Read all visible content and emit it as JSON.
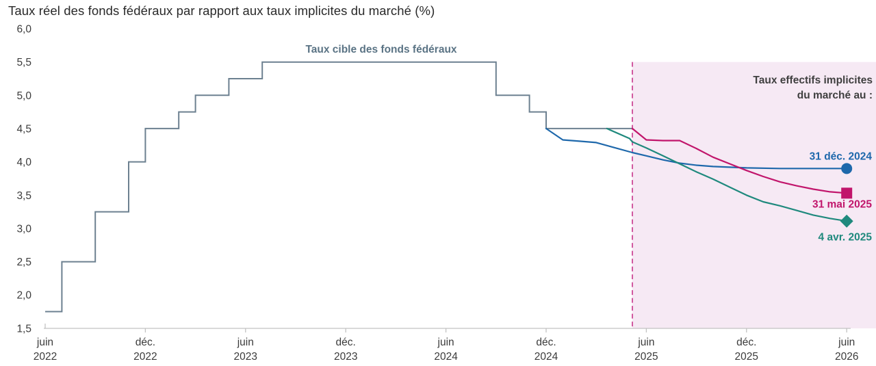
{
  "chart": {
    "title": "Taux réel des fonds fédéraux par rapport aux taux implicites du marché (%)"
  },
  "chart_data": {
    "type": "line",
    "title": "Taux réel des fonds fédéraux par rapport aux taux implicites du marché (%)",
    "ylim": [
      1.5,
      6.0
    ],
    "grid": false,
    "axis_color": "#c2c2c2",
    "y_ticks": [
      {
        "v": 6.0,
        "label": "6,0"
      },
      {
        "v": 5.5,
        "label": "5,5"
      },
      {
        "v": 5.0,
        "label": "5,0"
      },
      {
        "v": 4.5,
        "label": "4,5"
      },
      {
        "v": 4.0,
        "label": "4,0"
      },
      {
        "v": 3.5,
        "label": "3,5"
      },
      {
        "v": 3.0,
        "label": "3,0"
      },
      {
        "v": 2.5,
        "label": "2,5"
      },
      {
        "v": 2.0,
        "label": "2,0"
      },
      {
        "v": 1.5,
        "label": "1,5"
      }
    ],
    "x_ticks": [
      {
        "date": "2022-06",
        "month": "juin",
        "year": "2022"
      },
      {
        "date": "2022-12",
        "month": "déc.",
        "year": "2022"
      },
      {
        "date": "2023-06",
        "month": "juin",
        "year": "2023"
      },
      {
        "date": "2023-12",
        "month": "déc.",
        "year": "2023"
      },
      {
        "date": "2024-06",
        "month": "juin",
        "year": "2024"
      },
      {
        "date": "2024-12",
        "month": "déc.",
        "year": "2024"
      },
      {
        "date": "2025-06",
        "month": "juin",
        "year": "2025"
      },
      {
        "date": "2025-12",
        "month": "déc.",
        "year": "2025"
      },
      {
        "date": "2026-06",
        "month": "juin",
        "year": "2026"
      }
    ],
    "forecast_region": {
      "start": "2025-05-20",
      "top_value": 5.5,
      "fill": "#f6e9f4",
      "divider_color": "#d159a0",
      "label_lines": [
        "Taux effectifs implicites",
        "du marché au :"
      ],
      "label_color": "#3f3f3f"
    },
    "series": [
      {
        "id": "target-rate",
        "label": "Taux cible des fonds fédéraux",
        "style": "step",
        "color": "#6c8090",
        "label_color": "#5a7384",
        "points": [
          [
            "2022-06",
            1.75
          ],
          [
            "2022-07",
            2.5
          ],
          [
            "2022-09",
            3.25
          ],
          [
            "2022-11",
            4.0
          ],
          [
            "2022-12",
            4.5
          ],
          [
            "2023-02",
            4.75
          ],
          [
            "2023-03",
            5.0
          ],
          [
            "2023-05",
            5.25
          ],
          [
            "2023-07",
            5.5
          ],
          [
            "2024-09",
            5.0
          ],
          [
            "2024-11",
            4.75
          ],
          [
            "2024-12",
            4.5
          ],
          [
            "2025-05-20",
            4.5
          ]
        ]
      },
      {
        "id": "implied-2024-12-31",
        "label": "31 déc. 2024",
        "style": "line",
        "color": "#1e68ab",
        "marker": "circle",
        "points": [
          [
            "2024-12-15",
            4.5
          ],
          [
            "2025-01",
            4.33
          ],
          [
            "2025-02",
            4.31
          ],
          [
            "2025-03",
            4.29
          ],
          [
            "2025-04",
            4.22
          ],
          [
            "2025-05-20",
            4.14
          ],
          [
            "2025-06",
            4.09
          ],
          [
            "2025-07",
            4.03
          ],
          [
            "2025-08",
            3.98
          ],
          [
            "2025-09",
            3.95
          ],
          [
            "2025-10",
            3.93
          ],
          [
            "2025-11",
            3.92
          ],
          [
            "2025-12",
            3.91
          ],
          [
            "2026-02",
            3.9
          ],
          [
            "2026-06",
            3.9
          ]
        ]
      },
      {
        "id": "implied-2025-05-31",
        "label": "31 mai 2025",
        "style": "line",
        "color": "#c1156b",
        "marker": "square",
        "points": [
          [
            "2025-05-20",
            4.5
          ],
          [
            "2025-06",
            4.33
          ],
          [
            "2025-07",
            4.32
          ],
          [
            "2025-08",
            4.32
          ],
          [
            "2025-09",
            4.2
          ],
          [
            "2025-10",
            4.07
          ],
          [
            "2025-11",
            3.97
          ],
          [
            "2025-12",
            3.87
          ],
          [
            "2026-01",
            3.78
          ],
          [
            "2026-02",
            3.7
          ],
          [
            "2026-03",
            3.64
          ],
          [
            "2026-04",
            3.59
          ],
          [
            "2026-05",
            3.55
          ],
          [
            "2026-06",
            3.53
          ]
        ]
      },
      {
        "id": "implied-2025-04-04",
        "label": "4 avr. 2025",
        "style": "line",
        "color": "#1f897d",
        "marker": "diamond",
        "points": [
          [
            "2025-04-04",
            4.5
          ],
          [
            "2025-05",
            4.35
          ],
          [
            "2025-05-20",
            4.3
          ],
          [
            "2025-06",
            4.21
          ],
          [
            "2025-07",
            4.09
          ],
          [
            "2025-08",
            3.97
          ],
          [
            "2025-09",
            3.85
          ],
          [
            "2025-10",
            3.74
          ],
          [
            "2025-11",
            3.62
          ],
          [
            "2025-12",
            3.5
          ],
          [
            "2026-01",
            3.4
          ],
          [
            "2026-02",
            3.34
          ],
          [
            "2026-03",
            3.27
          ],
          [
            "2026-04",
            3.2
          ],
          [
            "2026-05",
            3.15
          ],
          [
            "2026-06",
            3.11
          ]
        ]
      }
    ]
  }
}
